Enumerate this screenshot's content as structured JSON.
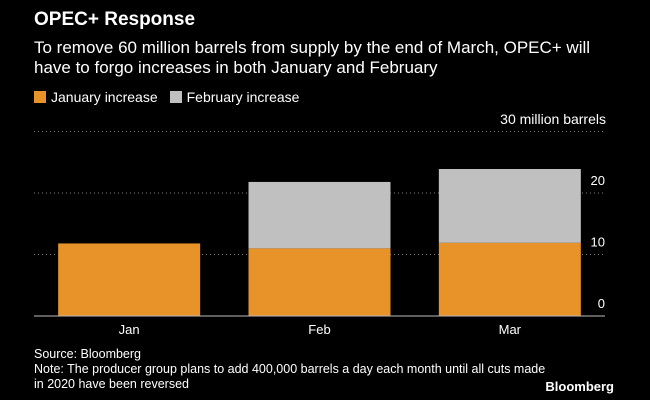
{
  "chart_data": {
    "type": "bar",
    "stacked": true,
    "title": "OPEC+ Response",
    "subtitle": "To remove 60 million barrels from supply by the end of March, OPEC+ will have to forgo increases in both January and February",
    "units_label": "30 million barrels",
    "categories": [
      "Jan",
      "Feb",
      "Mar"
    ],
    "series": [
      {
        "name": "January increase",
        "color": "#e8922a",
        "values": [
          11.8,
          11.0,
          11.9
        ]
      },
      {
        "name": "February increase",
        "color": "#c0c0c0",
        "values": [
          0,
          10.8,
          12.0
        ]
      }
    ],
    "ylim": [
      0,
      30
    ],
    "yticks": [
      0,
      10,
      20
    ],
    "ytick_labels": [
      "0",
      "10",
      "20"
    ],
    "grid": true,
    "source": "Source: Bloomberg",
    "note": "Note: The producer group plans to add 400,000 barrels a day each month until all cuts made in 2020 have been reversed",
    "brand": "Bloomberg"
  }
}
